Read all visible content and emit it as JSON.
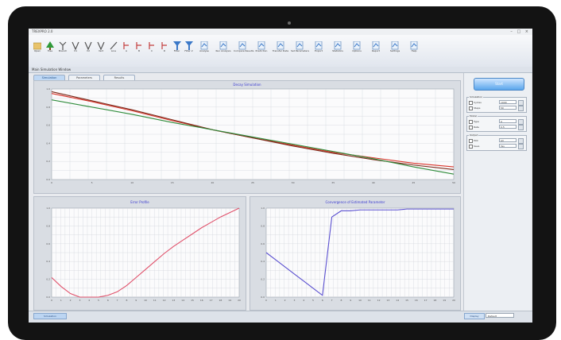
{
  "colors": {
    "red_series": "#d9342b",
    "green_series": "#2e8b3a",
    "dark_series": "#7a2a1a",
    "pink_series": "#e0506a",
    "blue_series": "#5a4fd0",
    "title_color": "#3a3ad0"
  },
  "window": {
    "title": "TREXPRO 2.0",
    "controls": "– □ ×"
  },
  "ribbon": {
    "items": [
      {
        "label": "Open",
        "icon": "open-icon"
      },
      {
        "label": "Tree",
        "icon": "tree-icon"
      },
      {
        "label": "Branch",
        "icon": "branch-icon"
      },
      {
        "label": "V1",
        "icon": "v-icon"
      },
      {
        "label": "V2",
        "icon": "v-icon"
      },
      {
        "label": "Vert",
        "icon": "v-icon"
      },
      {
        "label": "Line",
        "icon": "line-icon"
      },
      {
        "label": "A",
        "icon": "bracket-icon"
      },
      {
        "label": "B",
        "icon": "bracket-icon"
      },
      {
        "label": "C",
        "icon": "bracket-icon"
      },
      {
        "label": "D",
        "icon": "bracket-icon"
      },
      {
        "label": "Filter",
        "icon": "funnel-icon"
      },
      {
        "label": "Filter 2",
        "icon": "funnel-icon"
      },
      {
        "label": "Analyse",
        "icon": "doc-icon"
      },
      {
        "label": "Run Analysis",
        "icon": "doc-icon"
      },
      {
        "label": "Compare Results",
        "icon": "doc-icon"
      },
      {
        "label": "Prediction",
        "icon": "doc-icon"
      },
      {
        "label": "Transfer Data",
        "icon": "doc-icon"
      },
      {
        "label": "Set Parameters",
        "icon": "doc-icon"
      },
      {
        "label": "Export",
        "icon": "doc-icon"
      },
      {
        "label": "Statistics",
        "icon": "doc-icon"
      },
      {
        "label": "Options",
        "icon": "doc-icon"
      },
      {
        "label": "Report",
        "icon": "doc-icon"
      },
      {
        "label": "Settings",
        "icon": "doc-icon"
      },
      {
        "label": "Help",
        "icon": "doc-icon"
      }
    ]
  },
  "panel_bar": {
    "label": "Main Simulation Window"
  },
  "tabs": [
    {
      "label": "Simulation"
    },
    {
      "label": "Parameters"
    },
    {
      "label": "Results"
    }
  ],
  "side": {
    "start_label": "Start",
    "groups": [
      {
        "label": "Simulation",
        "rows": [
          {
            "key": "Cycles",
            "value": "1000"
          },
          {
            "key": "Steps",
            "value": "50"
          }
        ]
      },
      {
        "label": "Model",
        "rows": [
          {
            "key": "Type",
            "value": "A"
          },
          {
            "key": "Rate",
            "value": "0.5"
          }
        ]
      },
      {
        "label": "Output",
        "rows": [
          {
            "key": "Plot",
            "value": "All"
          },
          {
            "key": "Save",
            "value": "Yes"
          }
        ]
      }
    ]
  },
  "status": {
    "tab_label": "Simulation",
    "dropdown_label": "Display",
    "dropdown_value": "Default"
  },
  "chart_data": [
    {
      "type": "line",
      "title": "Decay Simulation",
      "x": [
        0,
        5,
        10,
        15,
        20,
        25,
        30,
        35,
        40,
        45,
        50
      ],
      "ylim": [
        0,
        1
      ],
      "grid": true,
      "series": [
        {
          "color_key": "red_series",
          "values": [
            0.95,
            0.86,
            0.76,
            0.65,
            0.55,
            0.46,
            0.38,
            0.3,
            0.24,
            0.18,
            0.14
          ]
        },
        {
          "color_key": "dark_series",
          "values": [
            0.97,
            0.87,
            0.77,
            0.66,
            0.55,
            0.46,
            0.37,
            0.29,
            0.22,
            0.16,
            0.11
          ]
        },
        {
          "color_key": "green_series",
          "values": [
            0.88,
            0.8,
            0.72,
            0.63,
            0.55,
            0.47,
            0.39,
            0.31,
            0.23,
            0.14,
            0.06
          ]
        }
      ]
    },
    {
      "type": "line",
      "title": "Error Profile",
      "x": [
        0,
        1,
        2,
        3,
        4,
        5,
        6,
        7,
        8,
        9,
        10,
        11,
        12,
        13,
        14,
        15,
        16,
        17,
        18,
        19,
        20
      ],
      "ylim": [
        0,
        1
      ],
      "grid": true,
      "series": [
        {
          "color_key": "pink_series",
          "values": [
            0.22,
            0.12,
            0.04,
            0.0,
            0.0,
            0.0,
            0.02,
            0.06,
            0.13,
            0.22,
            0.31,
            0.4,
            0.49,
            0.57,
            0.64,
            0.71,
            0.78,
            0.84,
            0.9,
            0.95,
            1.0
          ]
        }
      ]
    },
    {
      "type": "line",
      "title": "Convergence of Estimated Parameter",
      "x": [
        0,
        1,
        2,
        3,
        4,
        5,
        6,
        7,
        8,
        9,
        10,
        11,
        12,
        13,
        14,
        15,
        16,
        17,
        18,
        19,
        20
      ],
      "ylim": [
        0,
        1
      ],
      "grid": true,
      "series": [
        {
          "color_key": "blue_series",
          "values": [
            0.5,
            0.42,
            0.34,
            0.26,
            0.18,
            0.1,
            0.02,
            0.9,
            0.97,
            0.97,
            0.98,
            0.98,
            0.98,
            0.98,
            0.98,
            0.99,
            0.99,
            0.99,
            0.99,
            0.99,
            0.99
          ]
        }
      ]
    }
  ]
}
